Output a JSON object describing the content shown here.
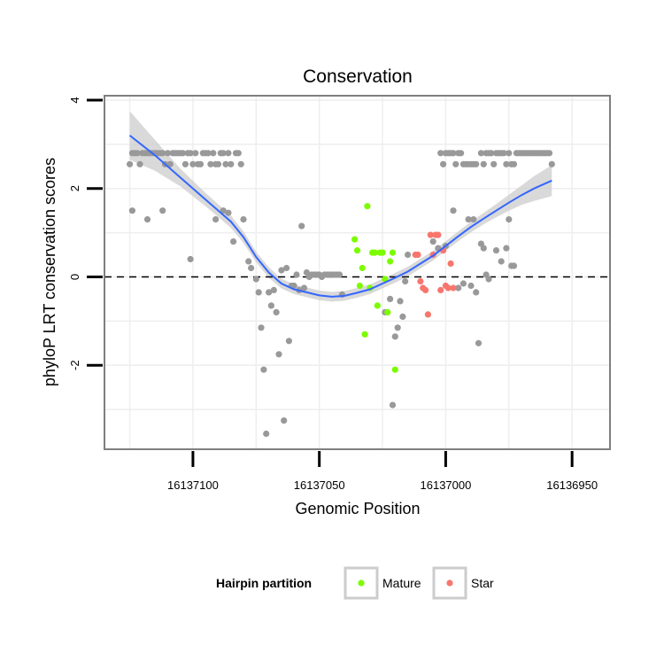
{
  "chart_data": {
    "type": "scatter",
    "title": "Conservation",
    "xlabel": "Genomic Position",
    "ylabel": "phyloP LRT conservation scores",
    "x_reversed": true,
    "xlim": [
      16137135,
      16136935
    ],
    "ylim": [
      -3.9,
      4.1
    ],
    "x_ticks": [
      16137100,
      16137050,
      16137000,
      16136950
    ],
    "x_tick_labels": [
      "16137100",
      "16137050",
      "16137000",
      "16136950"
    ],
    "y_ticks": [
      -2,
      0,
      2,
      4
    ],
    "y_tick_labels": [
      "-2",
      "0",
      "2",
      "4"
    ],
    "reference_line": {
      "y": 0,
      "style": "dashed"
    },
    "legend": {
      "title": "Hairpin partition",
      "position": "bottom",
      "entries": [
        {
          "label": "Mature",
          "color": "#7CFC00"
        },
        {
          "label": "Star",
          "color": "#F8766D"
        }
      ]
    },
    "colors": {
      "other": "#999999",
      "mature": "#7CFC00",
      "star": "#F8766D",
      "smooth": "#3366FF",
      "band": "#CCCCCC",
      "grid": "#EEEEEE"
    },
    "series": [
      {
        "name": "Other",
        "points": [
          [
            16137125,
            2.55
          ],
          [
            16137124,
            2.8
          ],
          [
            16137123,
            2.8
          ],
          [
            16137122,
            2.8
          ],
          [
            16137121,
            2.55
          ],
          [
            16137120,
            2.8
          ],
          [
            16137119,
            2.8
          ],
          [
            16137118,
            2.8
          ],
          [
            16137117,
            2.8
          ],
          [
            16137116,
            2.8
          ],
          [
            16137115,
            2.8
          ],
          [
            16137114,
            2.8
          ],
          [
            16137113,
            2.8
          ],
          [
            16137112,
            2.8
          ],
          [
            16137111,
            2.55
          ],
          [
            16137110,
            2.8
          ],
          [
            16137109,
            2.55
          ],
          [
            16137108,
            2.8
          ],
          [
            16137107,
            2.8
          ],
          [
            16137106,
            2.8
          ],
          [
            16137105,
            2.8
          ],
          [
            16137104,
            2.8
          ],
          [
            16137103,
            2.55
          ],
          [
            16137102,
            2.8
          ],
          [
            16137101,
            2.8
          ],
          [
            16137100,
            2.55
          ],
          [
            16137099,
            2.8
          ],
          [
            16137098,
            2.55
          ],
          [
            16137097,
            2.55
          ],
          [
            16137096,
            2.8
          ],
          [
            16137095,
            2.8
          ],
          [
            16137094,
            2.8
          ],
          [
            16137093,
            2.55
          ],
          [
            16137092,
            2.8
          ],
          [
            16137091,
            2.55
          ],
          [
            16137090,
            2.55
          ],
          [
            16137089,
            2.8
          ],
          [
            16137088,
            2.8
          ],
          [
            16137087,
            2.55
          ],
          [
            16137086,
            2.8
          ],
          [
            16137085,
            2.55
          ],
          [
            16137083,
            2.8
          ],
          [
            16137082,
            2.8
          ],
          [
            16137081,
            2.55
          ],
          [
            16137124,
            1.5
          ],
          [
            16137118,
            1.3
          ],
          [
            16137112,
            1.5
          ],
          [
            16137101,
            0.4
          ],
          [
            16137091,
            1.3
          ],
          [
            16137088,
            1.5
          ],
          [
            16137086,
            1.45
          ],
          [
            16137084,
            0.8
          ],
          [
            16137080,
            1.3
          ],
          [
            16137078,
            0.35
          ],
          [
            16137077,
            0.2
          ],
          [
            16137075,
            -0.05
          ],
          [
            16137074,
            -0.35
          ],
          [
            16137073,
            -1.15
          ],
          [
            16137072,
            -2.1
          ],
          [
            16137071,
            -3.55
          ],
          [
            16137070,
            -0.35
          ],
          [
            16137069,
            -0.65
          ],
          [
            16137068,
            -0.3
          ],
          [
            16137067,
            -0.8
          ],
          [
            16137066,
            -1.75
          ],
          [
            16137065,
            0.15
          ],
          [
            16137064,
            -3.25
          ],
          [
            16137063,
            0.2
          ],
          [
            16137062,
            -1.45
          ],
          [
            16137061,
            -0.2
          ],
          [
            16137060,
            -0.2
          ],
          [
            16137059,
            0.05
          ],
          [
            16137058,
            -0.3
          ],
          [
            16137057,
            1.15
          ],
          [
            16137056,
            -0.25
          ],
          [
            16137055,
            0.1
          ],
          [
            16137054,
            0.0
          ],
          [
            16137053,
            0.05
          ],
          [
            16137052,
            0.05
          ],
          [
            16137051,
            0.05
          ],
          [
            16137050,
            0.05
          ],
          [
            16137049,
            0.0
          ],
          [
            16137048,
            0.05
          ],
          [
            16137047,
            0.05
          ],
          [
            16137046,
            0.05
          ],
          [
            16137045,
            0.05
          ],
          [
            16137044,
            0.05
          ],
          [
            16137043,
            0.05
          ],
          [
            16137042,
            0.05
          ],
          [
            16137041,
            -0.4
          ],
          [
            16137024,
            -0.8
          ],
          [
            16137022,
            -0.5
          ],
          [
            16137021,
            -2.9
          ],
          [
            16137020,
            -1.35
          ],
          [
            16137019,
            -1.15
          ],
          [
            16137018,
            -0.55
          ],
          [
            16137017,
            -0.9
          ],
          [
            16137016,
            -0.1
          ],
          [
            16137015,
            0.5
          ],
          [
            16137002,
            2.8
          ],
          [
            16137001,
            2.55
          ],
          [
            16137000,
            2.8
          ],
          [
            16136999,
            2.8
          ],
          [
            16136998,
            2.8
          ],
          [
            16136997,
            2.8
          ],
          [
            16136996,
            2.55
          ],
          [
            16136995,
            2.8
          ],
          [
            16136994,
            2.8
          ],
          [
            16136993,
            2.55
          ],
          [
            16136992,
            2.55
          ],
          [
            16136991,
            2.55
          ],
          [
            16136990,
            2.55
          ],
          [
            16136989,
            2.55
          ],
          [
            16136988,
            2.55
          ],
          [
            16136986,
            2.8
          ],
          [
            16136985,
            2.55
          ],
          [
            16136984,
            2.8
          ],
          [
            16136983,
            2.8
          ],
          [
            16136982,
            2.8
          ],
          [
            16136981,
            2.55
          ],
          [
            16136980,
            2.8
          ],
          [
            16136979,
            2.8
          ],
          [
            16136978,
            2.8
          ],
          [
            16136977,
            2.8
          ],
          [
            16136976,
            2.55
          ],
          [
            16136975,
            2.8
          ],
          [
            16136974,
            2.55
          ],
          [
            16136973,
            2.55
          ],
          [
            16136972,
            2.8
          ],
          [
            16136971,
            2.8
          ],
          [
            16136970,
            2.8
          ],
          [
            16136969,
            2.8
          ],
          [
            16136968,
            2.8
          ],
          [
            16136967,
            2.8
          ],
          [
            16136966,
            2.8
          ],
          [
            16136965,
            2.8
          ],
          [
            16136964,
            2.8
          ],
          [
            16136963,
            2.8
          ],
          [
            16136962,
            2.8
          ],
          [
            16136961,
            2.8
          ],
          [
            16136960,
            2.8
          ],
          [
            16136959,
            2.8
          ],
          [
            16136958,
            2.55
          ],
          [
            16137005,
            0.8
          ],
          [
            16137003,
            0.65
          ],
          [
            16137000,
            0.7
          ],
          [
            16136997,
            1.5
          ],
          [
            16136995,
            -0.25
          ],
          [
            16136993,
            -0.15
          ],
          [
            16136991,
            1.3
          ],
          [
            16136990,
            -0.2
          ],
          [
            16136989,
            1.3
          ],
          [
            16136988,
            -0.35
          ],
          [
            16136987,
            -1.5
          ],
          [
            16136986,
            0.75
          ],
          [
            16136985,
            0.65
          ],
          [
            16136984,
            0.05
          ],
          [
            16136983,
            -0.05
          ],
          [
            16136980,
            0.6
          ],
          [
            16136978,
            0.35
          ],
          [
            16136976,
            0.65
          ],
          [
            16136975,
            1.3
          ],
          [
            16136974,
            0.25
          ],
          [
            16136973,
            0.25
          ]
        ]
      },
      {
        "name": "Mature",
        "points": [
          [
            16137036,
            0.85
          ],
          [
            16137035,
            0.6
          ],
          [
            16137034,
            -0.2
          ],
          [
            16137033,
            0.2
          ],
          [
            16137032,
            -1.3
          ],
          [
            16137031,
            1.6
          ],
          [
            16137030,
            -0.25
          ],
          [
            16137029,
            0.55
          ],
          [
            16137028,
            0.55
          ],
          [
            16137027,
            -0.65
          ],
          [
            16137026,
            0.55
          ],
          [
            16137025,
            0.55
          ],
          [
            16137024,
            -0.05
          ],
          [
            16137023,
            -0.8
          ],
          [
            16137022,
            0.35
          ],
          [
            16137021,
            0.55
          ],
          [
            16137020,
            -2.1
          ]
        ]
      },
      {
        "name": "Star",
        "points": [
          [
            16137012,
            0.5
          ],
          [
            16137011,
            0.5
          ],
          [
            16137010,
            -0.1
          ],
          [
            16137009,
            -0.25
          ],
          [
            16137008,
            -0.3
          ],
          [
            16137007,
            -0.85
          ],
          [
            16137006,
            0.95
          ],
          [
            16137005,
            0.5
          ],
          [
            16137004,
            0.95
          ],
          [
            16137003,
            0.95
          ],
          [
            16137002,
            -0.3
          ],
          [
            16137001,
            0.6
          ],
          [
            16137000,
            -0.2
          ],
          [
            16136999,
            -0.25
          ],
          [
            16136998,
            0.3
          ],
          [
            16136997,
            -0.25
          ]
        ]
      }
    ],
    "smooth_fit": {
      "points": [
        [
          16137125,
          3.2
        ],
        [
          16137115,
          2.75
        ],
        [
          16137105,
          2.25
        ],
        [
          16137095,
          1.75
        ],
        [
          16137085,
          1.25
        ],
        [
          16137080,
          0.9
        ],
        [
          16137075,
          0.45
        ],
        [
          16137070,
          0.1
        ],
        [
          16137065,
          -0.15
        ],
        [
          16137060,
          -0.28
        ],
        [
          16137055,
          -0.35
        ],
        [
          16137050,
          -0.42
        ],
        [
          16137045,
          -0.45
        ],
        [
          16137040,
          -0.43
        ],
        [
          16137035,
          -0.36
        ],
        [
          16137030,
          -0.28
        ],
        [
          16137025,
          -0.15
        ],
        [
          16137020,
          -0.02
        ],
        [
          16137015,
          0.12
        ],
        [
          16137010,
          0.3
        ],
        [
          16137005,
          0.48
        ],
        [
          16137000,
          0.7
        ],
        [
          16136995,
          0.92
        ],
        [
          16136990,
          1.13
        ],
        [
          16136985,
          1.32
        ],
        [
          16136980,
          1.5
        ],
        [
          16136975,
          1.68
        ],
        [
          16136970,
          1.85
        ],
        [
          16136965,
          2.0
        ],
        [
          16136958,
          2.18
        ]
      ],
      "band_halfwidth": [
        0.55,
        0.35,
        0.2,
        0.15,
        0.14,
        0.13,
        0.12,
        0.12,
        0.11,
        0.11,
        0.11,
        0.11,
        0.11,
        0.11,
        0.11,
        0.11,
        0.11,
        0.11,
        0.11,
        0.11,
        0.11,
        0.11,
        0.11,
        0.12,
        0.13,
        0.15,
        0.18,
        0.22,
        0.28,
        0.35
      ]
    }
  }
}
